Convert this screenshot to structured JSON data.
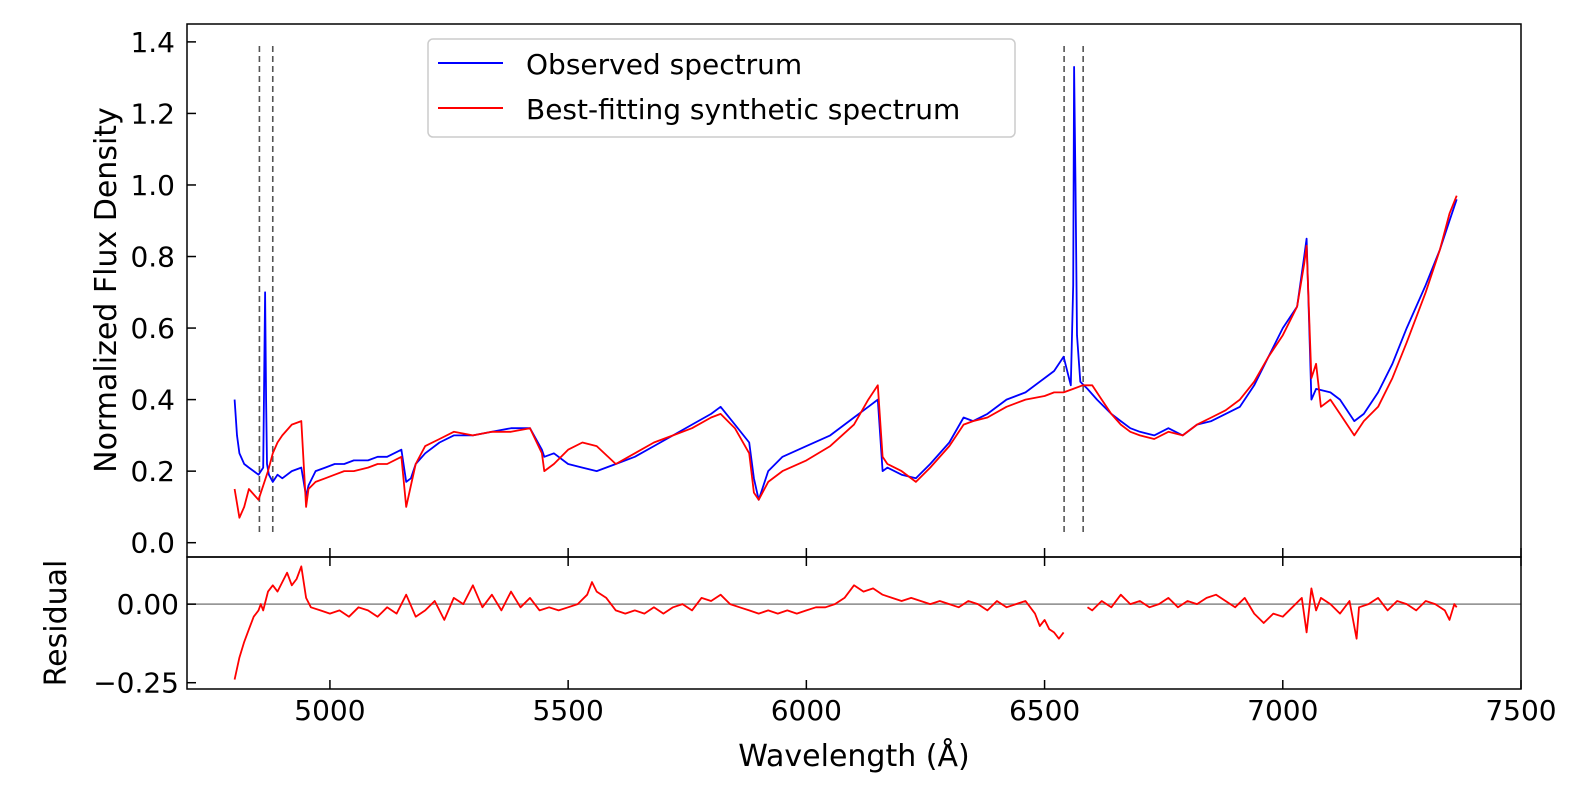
{
  "chart_data": [
    {
      "type": "line",
      "panel": "main",
      "ylabel": "Normalized Flux Density",
      "xlim": [
        4700,
        7500
      ],
      "ylim": [
        -0.04,
        1.45
      ],
      "yticks": [
        0.0,
        0.2,
        0.4,
        0.6,
        0.8,
        1.0,
        1.2,
        1.4
      ],
      "ytick_labels": [
        "0.0",
        "0.2",
        "0.4",
        "0.6",
        "0.8",
        "1.0",
        "1.2",
        "1.4"
      ],
      "xticks": [
        5000,
        5500,
        6000,
        6500,
        7000,
        7500
      ],
      "reference_lines": [
        4852,
        4880,
        6541,
        6581
      ],
      "legend": {
        "placement": "upper-center",
        "entries": [
          {
            "label": "Observed spectrum",
            "color": "#0000ff"
          },
          {
            "label": "Best-fitting synthetic spectrum",
            "color": "#ff0000"
          }
        ]
      },
      "series": [
        {
          "name": "Observed spectrum",
          "color": "#0000ff",
          "x": [
            4800,
            4805,
            4810,
            4820,
            4830,
            4840,
            4850,
            4860,
            4864,
            4866,
            4868,
            4872,
            4880,
            4890,
            4900,
            4920,
            4940,
            4950,
            4955,
            4970,
            4990,
            5010,
            5030,
            5050,
            5080,
            5100,
            5120,
            5150,
            5160,
            5170,
            5180,
            5200,
            5230,
            5260,
            5300,
            5340,
            5380,
            5420,
            5445,
            5450,
            5470,
            5500,
            5530,
            5560,
            5600,
            5640,
            5680,
            5720,
            5760,
            5800,
            5820,
            5850,
            5880,
            5890,
            5900,
            5920,
            5950,
            6000,
            6050,
            6100,
            6130,
            6150,
            6160,
            6170,
            6200,
            6230,
            6260,
            6300,
            6330,
            6350,
            6380,
            6420,
            6460,
            6500,
            6520,
            6540,
            6555,
            6560,
            6562,
            6565,
            6568,
            6575,
            6590,
            6610,
            6640,
            6660,
            6680,
            6700,
            6730,
            6760,
            6790,
            6820,
            6850,
            6880,
            6910,
            6940,
            6970,
            7000,
            7030,
            7045,
            7050,
            7060,
            7070,
            7100,
            7120,
            7150,
            7170,
            7200,
            7230,
            7260,
            7300,
            7330,
            7350,
            7365
          ],
          "y": [
            0.4,
            0.3,
            0.25,
            0.22,
            0.21,
            0.2,
            0.19,
            0.21,
            0.7,
            0.4,
            0.22,
            0.19,
            0.17,
            0.19,
            0.18,
            0.2,
            0.21,
            0.13,
            0.16,
            0.2,
            0.21,
            0.22,
            0.22,
            0.23,
            0.23,
            0.24,
            0.24,
            0.26,
            0.17,
            0.18,
            0.22,
            0.25,
            0.28,
            0.3,
            0.3,
            0.31,
            0.32,
            0.32,
            0.26,
            0.24,
            0.25,
            0.22,
            0.21,
            0.2,
            0.22,
            0.24,
            0.27,
            0.3,
            0.33,
            0.36,
            0.38,
            0.33,
            0.28,
            0.18,
            0.12,
            0.2,
            0.24,
            0.27,
            0.3,
            0.35,
            0.38,
            0.4,
            0.2,
            0.21,
            0.19,
            0.18,
            0.22,
            0.28,
            0.35,
            0.34,
            0.36,
            0.4,
            0.42,
            0.46,
            0.48,
            0.52,
            0.44,
            0.72,
            1.33,
            1.0,
            0.58,
            0.45,
            0.43,
            0.4,
            0.36,
            0.34,
            0.32,
            0.31,
            0.3,
            0.32,
            0.3,
            0.33,
            0.34,
            0.36,
            0.38,
            0.44,
            0.52,
            0.6,
            0.66,
            0.8,
            0.85,
            0.4,
            0.43,
            0.42,
            0.4,
            0.34,
            0.36,
            0.42,
            0.5,
            0.6,
            0.72,
            0.82,
            0.9,
            0.96
          ]
        },
        {
          "name": "Best-fitting synthetic spectrum",
          "color": "#ff0000",
          "x": [
            4800,
            4810,
            4820,
            4830,
            4850,
            4870,
            4880,
            4890,
            4900,
            4920,
            4940,
            4950,
            4955,
            4970,
            4990,
            5010,
            5030,
            5050,
            5080,
            5100,
            5120,
            5150,
            5160,
            5170,
            5180,
            5200,
            5230,
            5260,
            5300,
            5340,
            5380,
            5420,
            5445,
            5450,
            5470,
            5500,
            5530,
            5560,
            5600,
            5640,
            5680,
            5720,
            5760,
            5800,
            5820,
            5850,
            5880,
            5890,
            5900,
            5920,
            5950,
            6000,
            6050,
            6100,
            6130,
            6150,
            6160,
            6170,
            6200,
            6230,
            6260,
            6300,
            6330,
            6350,
            6380,
            6420,
            6460,
            6500,
            6520,
            6540,
            6560,
            6580,
            6600,
            6620,
            6640,
            6660,
            6680,
            6700,
            6730,
            6760,
            6790,
            6820,
            6850,
            6880,
            6910,
            6940,
            6970,
            7000,
            7030,
            7045,
            7050,
            7060,
            7070,
            7080,
            7100,
            7120,
            7150,
            7170,
            7200,
            7230,
            7260,
            7300,
            7330,
            7350,
            7365
          ],
          "y": [
            0.15,
            0.07,
            0.1,
            0.15,
            0.12,
            0.2,
            0.25,
            0.28,
            0.3,
            0.33,
            0.34,
            0.1,
            0.15,
            0.17,
            0.18,
            0.19,
            0.2,
            0.2,
            0.21,
            0.22,
            0.22,
            0.24,
            0.1,
            0.16,
            0.22,
            0.27,
            0.29,
            0.31,
            0.3,
            0.31,
            0.31,
            0.32,
            0.25,
            0.2,
            0.22,
            0.26,
            0.28,
            0.27,
            0.22,
            0.25,
            0.28,
            0.3,
            0.32,
            0.35,
            0.36,
            0.32,
            0.25,
            0.14,
            0.12,
            0.17,
            0.2,
            0.23,
            0.27,
            0.33,
            0.4,
            0.44,
            0.24,
            0.22,
            0.2,
            0.17,
            0.21,
            0.27,
            0.33,
            0.34,
            0.35,
            0.38,
            0.4,
            0.41,
            0.42,
            0.42,
            0.43,
            0.44,
            0.44,
            0.4,
            0.36,
            0.33,
            0.31,
            0.3,
            0.29,
            0.31,
            0.3,
            0.33,
            0.35,
            0.37,
            0.4,
            0.45,
            0.52,
            0.58,
            0.66,
            0.78,
            0.83,
            0.46,
            0.5,
            0.38,
            0.4,
            0.36,
            0.3,
            0.34,
            0.38,
            0.46,
            0.56,
            0.7,
            0.82,
            0.92,
            0.97
          ]
        }
      ]
    },
    {
      "type": "line",
      "panel": "residual",
      "xlabel": "Wavelength (Å)",
      "ylabel": "Residual",
      "xlim": [
        4700,
        7500
      ],
      "ylim": [
        -0.27,
        0.15
      ],
      "yticks": [
        -0.25,
        0.0
      ],
      "ytick_labels": [
        "−0.25",
        "0.00"
      ],
      "xticks": [
        5000,
        5500,
        6000,
        6500,
        7000,
        7500
      ],
      "xtick_labels": [
        "5000",
        "5500",
        "6000",
        "6500",
        "7000",
        "7500"
      ],
      "zero_line": 0.0,
      "series": [
        {
          "name": "Residual",
          "color": "#ff0000",
          "segments": [
            {
              "x": [
                4800,
                4810,
                4820,
                4830,
                4840,
                4850,
                4855,
                4860,
                4870,
                4880,
                4890,
                4900,
                4910,
                4920,
                4930,
                4940,
                4950,
                4960,
                4980,
                5000,
                5020,
                5040,
                5060,
                5080,
                5100,
                5120,
                5140,
                5160,
                5180,
                5200,
                5220,
                5240,
                5260,
                5280,
                5300,
                5320,
                5340,
                5360,
                5380,
                5400,
                5420,
                5440,
                5460,
                5480,
                5500,
                5520,
                5540,
                5550,
                5560,
                5580,
                5600,
                5620,
                5640,
                5660,
                5680,
                5700,
                5720,
                5740,
                5760,
                5780,
                5800,
                5820,
                5840,
                5860,
                5880,
                5900,
                5920,
                5940,
                5960,
                5980,
                6000,
                6020,
                6040,
                6060,
                6080,
                6100,
                6120,
                6140,
                6160,
                6180,
                6200,
                6220,
                6240,
                6260,
                6280,
                6300,
                6320,
                6340,
                6360,
                6380,
                6400,
                6420,
                6440,
                6460,
                6480,
                6490,
                6500,
                6510,
                6520,
                6530,
                6540
              ],
              "y": [
                -0.24,
                -0.17,
                -0.12,
                -0.08,
                -0.04,
                -0.02,
                0.0,
                -0.02,
                0.04,
                0.06,
                0.04,
                0.07,
                0.1,
                0.06,
                0.08,
                0.12,
                0.02,
                -0.01,
                -0.02,
                -0.03,
                -0.02,
                -0.04,
                -0.01,
                -0.02,
                -0.04,
                -0.01,
                -0.03,
                0.03,
                -0.04,
                -0.02,
                0.01,
                -0.05,
                0.02,
                0.0,
                0.06,
                -0.01,
                0.03,
                -0.02,
                0.04,
                -0.01,
                0.02,
                -0.02,
                -0.01,
                -0.02,
                -0.01,
                0.0,
                0.03,
                0.07,
                0.04,
                0.02,
                -0.02,
                -0.03,
                -0.02,
                -0.03,
                -0.01,
                -0.03,
                -0.01,
                0.0,
                -0.02,
                0.02,
                0.01,
                0.03,
                0.0,
                -0.01,
                -0.02,
                -0.03,
                -0.02,
                -0.03,
                -0.02,
                -0.03,
                -0.02,
                -0.01,
                -0.01,
                0.0,
                0.02,
                0.06,
                0.04,
                0.05,
                0.03,
                0.02,
                0.01,
                0.02,
                0.01,
                0.0,
                0.01,
                0.0,
                -0.01,
                0.01,
                0.0,
                -0.02,
                0.01,
                -0.01,
                0.0,
                0.01,
                -0.03,
                -0.07,
                -0.05,
                -0.08,
                -0.09,
                -0.11,
                -0.09
              ]
            },
            {
              "x": [
                6590,
                6600,
                6620,
                6640,
                6660,
                6680,
                6700,
                6720,
                6740,
                6760,
                6780,
                6800,
                6820,
                6840,
                6860,
                6880,
                6900,
                6920,
                6940,
                6960,
                6980,
                7000,
                7020,
                7040,
                7050,
                7060,
                7070,
                7080,
                7100,
                7120,
                7140,
                7155,
                7160,
                7180,
                7200,
                7220,
                7240,
                7260,
                7280,
                7300,
                7320,
                7340,
                7350,
                7360,
                7365
              ],
              "y": [
                -0.01,
                -0.02,
                0.01,
                -0.01,
                0.03,
                0.0,
                0.01,
                -0.01,
                0.0,
                0.02,
                -0.01,
                0.01,
                0.0,
                0.02,
                0.03,
                0.01,
                -0.01,
                0.02,
                -0.03,
                -0.06,
                -0.03,
                -0.04,
                -0.01,
                0.02,
                -0.09,
                0.05,
                -0.02,
                0.02,
                0.0,
                -0.03,
                0.01,
                -0.11,
                -0.01,
                0.0,
                0.02,
                -0.02,
                0.01,
                0.0,
                -0.02,
                0.01,
                0.0,
                -0.02,
                -0.05,
                0.0,
                -0.01
              ]
            }
          ]
        }
      ]
    }
  ]
}
